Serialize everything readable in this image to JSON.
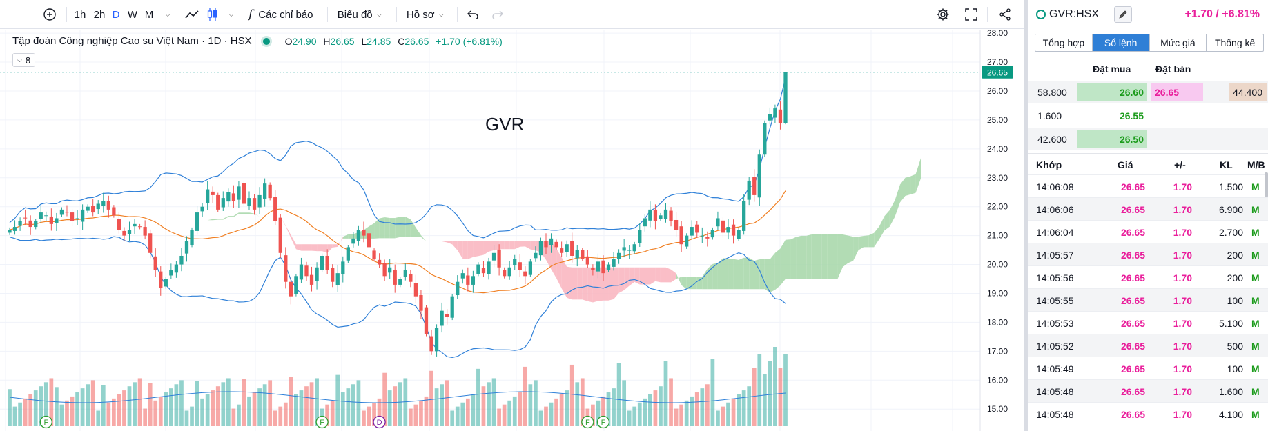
{
  "toolbar": {
    "intervals": [
      "1h",
      "2h",
      "D",
      "W",
      "M"
    ],
    "active_interval": "D",
    "indicators_label": "Các chỉ báo",
    "chart_label": "Biểu đồ",
    "template_label": "Hồ sơ"
  },
  "legend": {
    "title": "Tập đoàn Công nghiệp Cao su Việt Nam · 1D · HSX",
    "o_label": "O",
    "o": "24.90",
    "h_label": "H",
    "h": "26.65",
    "l_label": "L",
    "l": "24.85",
    "c_label": "C",
    "c": "26.65",
    "change": "+1.70 (+6.81%)",
    "indicator_count": "8"
  },
  "watermark": "GVR",
  "colors": {
    "up": "#26a69a",
    "down": "#ef5350",
    "bb": "#2f80d8",
    "ma": "#f07f22",
    "cloud_up": "#a5d6a7",
    "cloud_down": "#f9b3bd"
  },
  "chart_data": {
    "type": "candlestick",
    "symbol": "GVR",
    "exchange": "HSX",
    "interval": "1D",
    "y_axis": {
      "ticks": [
        28.0,
        27.0,
        26.0,
        25.0,
        24.0,
        23.0,
        22.0,
        21.0,
        20.0,
        19.0,
        18.0,
        17.0,
        16.0,
        15.0
      ],
      "tick_labels": [
        "28.00",
        "27.00",
        "26.00",
        "25.00",
        "24.00",
        "23.00",
        "22.00",
        "21.00",
        "20.00",
        "19.00",
        "18.00",
        "17.00",
        "16.00",
        "15.00"
      ],
      "ylim": [
        14.6,
        28.05
      ]
    },
    "last_price": 26.65,
    "last_price_label": "26.65",
    "series": [
      {
        "name": "Price",
        "type": "candles",
        "note": "values estimated from gridlines",
        "close": [
          21.2,
          21.3,
          21.5,
          21.6,
          21.3,
          21.5,
          21.8,
          21.7,
          21.4,
          21.6,
          21.9,
          21.8,
          21.5,
          21.6,
          21.9,
          22.0,
          21.8,
          22.1,
          22.2,
          21.9,
          21.7,
          21.2,
          21.0,
          21.2,
          21.4,
          21.3,
          21.0,
          20.4,
          19.8,
          19.2,
          19.5,
          19.8,
          20.0,
          20.3,
          20.8,
          21.2,
          21.8,
          22.0,
          22.6,
          22.4,
          21.9,
          22.3,
          22.5,
          22.2,
          22.7,
          22.1,
          22.3,
          21.9,
          22.4,
          22.8,
          22.3,
          21.5,
          20.4,
          19.4,
          18.9,
          19.6,
          20.0,
          19.6,
          19.3,
          19.9,
          20.3,
          19.8,
          19.4,
          19.7,
          20.1,
          20.6,
          20.9,
          21.2,
          21.0,
          20.6,
          20.2,
          20.0,
          19.6,
          19.9,
          19.3,
          19.5,
          19.8,
          19.4,
          18.9,
          18.4,
          17.6,
          17.0,
          17.8,
          18.4,
          18.2,
          18.9,
          19.4,
          19.7,
          19.3,
          19.6,
          20.0,
          19.7,
          20.1,
          20.4,
          19.9,
          19.6,
          19.9,
          20.2,
          19.8,
          19.6,
          20.1,
          20.4,
          20.8,
          20.6,
          20.9,
          20.6,
          20.4,
          20.7,
          20.3,
          20.5,
          20.2,
          20.0,
          19.8,
          20.1,
          19.7,
          20.0,
          20.2,
          20.4,
          20.6,
          20.5,
          20.7,
          21.2,
          21.6,
          21.9,
          21.5,
          21.7,
          21.9,
          21.5,
          21.2,
          20.7,
          21.0,
          21.3,
          21.1,
          21.0,
          20.9,
          21.2,
          21.6,
          21.1,
          21.3,
          21.0,
          21.2,
          22.2,
          22.9,
          22.4,
          23.8,
          24.9,
          25.2,
          25.4,
          24.9,
          26.65
        ]
      },
      {
        "name": "Bollinger upper",
        "color": "#2f80d8"
      },
      {
        "name": "Bollinger lower",
        "color": "#2f80d8"
      },
      {
        "name": "MA20",
        "color": "#f07f22"
      },
      {
        "name": "Ichimoku cloud"
      },
      {
        "name": "Volume",
        "type": "bar",
        "ylim": [
          0,
          1
        ]
      }
    ],
    "markers": [
      {
        "label": "F",
        "bar": 7
      },
      {
        "label": "F",
        "bar": 60
      },
      {
        "label": "D",
        "bar": 71
      },
      {
        "label": "F",
        "bar": 111
      },
      {
        "label": "F",
        "bar": 114
      }
    ]
  },
  "panel": {
    "symbol": "GVR:HSX",
    "change": "+1.70 / +6.81%",
    "tabs": [
      "Tổng hợp",
      "Sổ lệnh",
      "Mức giá",
      "Thống kê"
    ],
    "active_tab": "Sổ lệnh",
    "orderbook": {
      "bid_header": "Đặt mua",
      "ask_header": "Đặt bán",
      "rows": [
        {
          "bid_vol": "58.800",
          "bid": "26.60",
          "ask": "26.65",
          "ask_vol": "44.400"
        },
        {
          "bid_vol": "1.600",
          "bid": "26.55",
          "ask": "",
          "ask_vol": ""
        },
        {
          "bid_vol": "42.600",
          "bid": "26.50",
          "ask": "",
          "ask_vol": ""
        }
      ]
    },
    "trades": {
      "headers": [
        "Khớp",
        "Giá",
        "+/-",
        "KL",
        "M/B"
      ],
      "rows": [
        {
          "time": "14:06:08",
          "price": "26.65",
          "change": "1.70",
          "volume": "1.500",
          "side": "M"
        },
        {
          "time": "14:06:06",
          "price": "26.65",
          "change": "1.70",
          "volume": "6.900",
          "side": "M"
        },
        {
          "time": "14:06:04",
          "price": "26.65",
          "change": "1.70",
          "volume": "2.700",
          "side": "M"
        },
        {
          "time": "14:05:57",
          "price": "26.65",
          "change": "1.70",
          "volume": "200",
          "side": "M"
        },
        {
          "time": "14:05:56",
          "price": "26.65",
          "change": "1.70",
          "volume": "200",
          "side": "M"
        },
        {
          "time": "14:05:55",
          "price": "26.65",
          "change": "1.70",
          "volume": "100",
          "side": "M"
        },
        {
          "time": "14:05:53",
          "price": "26.65",
          "change": "1.70",
          "volume": "5.100",
          "side": "M"
        },
        {
          "time": "14:05:52",
          "price": "26.65",
          "change": "1.70",
          "volume": "500",
          "side": "M"
        },
        {
          "time": "14:05:49",
          "price": "26.65",
          "change": "1.70",
          "volume": "100",
          "side": "M"
        },
        {
          "time": "14:05:48",
          "price": "26.65",
          "change": "1.70",
          "volume": "1.600",
          "side": "M"
        },
        {
          "time": "14:05:48",
          "price": "26.65",
          "change": "1.70",
          "volume": "4.100",
          "side": "M"
        }
      ]
    }
  }
}
